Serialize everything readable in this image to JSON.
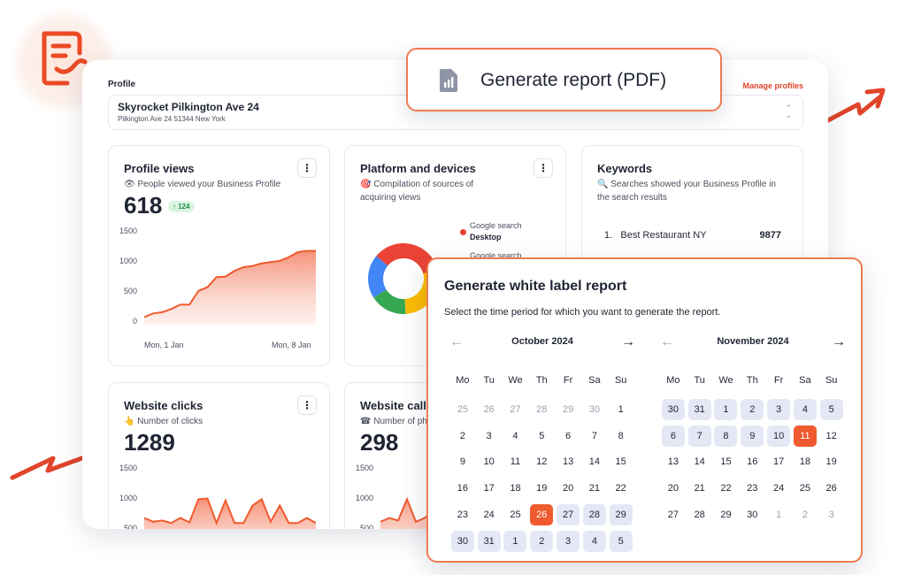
{
  "brand": {
    "accent": "#ef5a2e",
    "range_bg": "#e4e8f5",
    "logo_icon": "report-logo-icon"
  },
  "header": {
    "profile_label": "Profile",
    "manage_link": "Manage profiles"
  },
  "profile": {
    "name": "Skyrocket Pilkington Ave 24",
    "address": "Pilkington Ave 24 51344 New York"
  },
  "generate_button": {
    "label": "Generate report (PDF)",
    "icon": "pdf-chart-icon"
  },
  "cards": {
    "profile_views": {
      "title": "Profile views",
      "subtitle": "👁 People viewed your Business Profile",
      "value": "618",
      "delta": "↑ 124",
      "menu": "⋮",
      "y_ticks": [
        "1500",
        "1000",
        "500",
        "0"
      ],
      "x_ticks": [
        "Mon, 1 Jan",
        "Mon, 8 Jan"
      ]
    },
    "platform": {
      "title": "Platform and devices",
      "subtitle_line1": "🎯 Compilation of sources of",
      "subtitle_line2": "acquiring views",
      "menu": "⋮",
      "legend": [
        {
          "line1": "Google search",
          "line2": "Desktop",
          "color": "#ea4335"
        },
        {
          "line1": "Google search",
          "line2": "",
          "color": "#ea4335"
        }
      ]
    },
    "keywords": {
      "title": "Keywords",
      "subtitle_line1": "🔍 Searches showed your Business Profile in",
      "subtitle_line2": "the search results",
      "rows": [
        {
          "rank": "1.",
          "keyword": "Best Restaurant NY",
          "count": "9877"
        }
      ]
    },
    "website_clicks": {
      "title": "Website clicks",
      "subtitle": "👆 Number of clicks",
      "value": "1289",
      "menu": "⋮",
      "y_ticks": [
        "1500",
        "1000",
        "500"
      ]
    },
    "website_calls": {
      "title": "Website call",
      "subtitle": "☎ Number of ph",
      "value": "298",
      "y_ticks": [
        "1500",
        "1000",
        "500"
      ]
    }
  },
  "chart_data": [
    {
      "type": "area",
      "title": "Profile views",
      "x": [
        "Mon, 1 Jan",
        "",
        "",
        "",
        "",
        "",
        "",
        "",
        "",
        "",
        "",
        "",
        "",
        "",
        "",
        "",
        "",
        "",
        "",
        "Mon, 8 Jan"
      ],
      "values": [
        120,
        180,
        200,
        250,
        320,
        320,
        540,
        600,
        760,
        770,
        860,
        920,
        940,
        980,
        1000,
        1020,
        1080,
        1160,
        1180,
        1180
      ],
      "ylim": [
        0,
        1500
      ]
    },
    {
      "type": "pie",
      "title": "Platform and devices",
      "slices": [
        {
          "label": "Google search Desktop",
          "value": 35,
          "color": "#ea4335"
        },
        {
          "label": "",
          "value": 28,
          "color": "#fbbc05"
        },
        {
          "label": "",
          "value": 17,
          "color": "#34a853"
        },
        {
          "label": "",
          "value": 20,
          "color": "#4285f4"
        }
      ]
    },
    {
      "type": "area",
      "title": "Website clicks",
      "values": [
        700,
        640,
        660,
        620,
        700,
        630,
        1000,
        1010,
        620,
        980,
        620,
        620,
        900,
        1000,
        640,
        900,
        620,
        620,
        700,
        620
      ],
      "ylim": [
        0,
        1500
      ]
    },
    {
      "type": "area",
      "title": "Website call",
      "values": [
        640,
        700,
        660,
        1000,
        640,
        700,
        800,
        1150,
        640
      ],
      "ylim": [
        0,
        1500
      ]
    }
  ],
  "modal": {
    "title": "Generate white label report",
    "subtitle": "Select the time period for which you want to generate the report.",
    "prev_icon": "←",
    "next_icon": "→",
    "weekdays": [
      "Mo",
      "Tu",
      "We",
      "Th",
      "Fr",
      "Sa",
      "Su"
    ],
    "calendars": [
      {
        "month": "October 2024",
        "days": [
          {
            "d": "25",
            "s": "muted"
          },
          {
            "d": "26",
            "s": "muted"
          },
          {
            "d": "27",
            "s": "muted"
          },
          {
            "d": "28",
            "s": "muted"
          },
          {
            "d": "29",
            "s": "muted"
          },
          {
            "d": "30",
            "s": "muted"
          },
          {
            "d": "1",
            "s": ""
          },
          {
            "d": "2",
            "s": ""
          },
          {
            "d": "3",
            "s": ""
          },
          {
            "d": "4",
            "s": ""
          },
          {
            "d": "5",
            "s": ""
          },
          {
            "d": "6",
            "s": ""
          },
          {
            "d": "7",
            "s": ""
          },
          {
            "d": "8",
            "s": ""
          },
          {
            "d": "9",
            "s": ""
          },
          {
            "d": "10",
            "s": ""
          },
          {
            "d": "11",
            "s": ""
          },
          {
            "d": "12",
            "s": ""
          },
          {
            "d": "13",
            "s": ""
          },
          {
            "d": "14",
            "s": ""
          },
          {
            "d": "15",
            "s": ""
          },
          {
            "d": "16",
            "s": ""
          },
          {
            "d": "17",
            "s": ""
          },
          {
            "d": "18",
            "s": ""
          },
          {
            "d": "19",
            "s": ""
          },
          {
            "d": "20",
            "s": ""
          },
          {
            "d": "21",
            "s": ""
          },
          {
            "d": "22",
            "s": ""
          },
          {
            "d": "23",
            "s": ""
          },
          {
            "d": "24",
            "s": ""
          },
          {
            "d": "25",
            "s": ""
          },
          {
            "d": "26",
            "s": "sel"
          },
          {
            "d": "27",
            "s": "range"
          },
          {
            "d": "28",
            "s": "range"
          },
          {
            "d": "29",
            "s": "range"
          },
          {
            "d": "30",
            "s": "range"
          },
          {
            "d": "31",
            "s": "range"
          },
          {
            "d": "1",
            "s": "range"
          },
          {
            "d": "2",
            "s": "range"
          },
          {
            "d": "3",
            "s": "range"
          },
          {
            "d": "4",
            "s": "range"
          },
          {
            "d": "5",
            "s": "range"
          }
        ]
      },
      {
        "month": "November 2024",
        "days": [
          {
            "d": "30",
            "s": "range"
          },
          {
            "d": "31",
            "s": "range"
          },
          {
            "d": "1",
            "s": "range"
          },
          {
            "d": "2",
            "s": "range"
          },
          {
            "d": "3",
            "s": "range"
          },
          {
            "d": "4",
            "s": "range"
          },
          {
            "d": "5",
            "s": "range"
          },
          {
            "d": "6",
            "s": "range"
          },
          {
            "d": "7",
            "s": "range"
          },
          {
            "d": "8",
            "s": "range"
          },
          {
            "d": "9",
            "s": "range"
          },
          {
            "d": "10",
            "s": "range"
          },
          {
            "d": "11",
            "s": "sel"
          },
          {
            "d": "12",
            "s": ""
          },
          {
            "d": "13",
            "s": ""
          },
          {
            "d": "14",
            "s": ""
          },
          {
            "d": "15",
            "s": ""
          },
          {
            "d": "16",
            "s": ""
          },
          {
            "d": "17",
            "s": ""
          },
          {
            "d": "18",
            "s": ""
          },
          {
            "d": "19",
            "s": ""
          },
          {
            "d": "20",
            "s": ""
          },
          {
            "d": "21",
            "s": ""
          },
          {
            "d": "22",
            "s": ""
          },
          {
            "d": "23",
            "s": ""
          },
          {
            "d": "24",
            "s": ""
          },
          {
            "d": "25",
            "s": ""
          },
          {
            "d": "26",
            "s": ""
          },
          {
            "d": "27",
            "s": ""
          },
          {
            "d": "28",
            "s": ""
          },
          {
            "d": "29",
            "s": ""
          },
          {
            "d": "30",
            "s": ""
          },
          {
            "d": "1",
            "s": "muted"
          },
          {
            "d": "2",
            "s": "muted"
          },
          {
            "d": "3",
            "s": "muted"
          }
        ]
      }
    ]
  }
}
